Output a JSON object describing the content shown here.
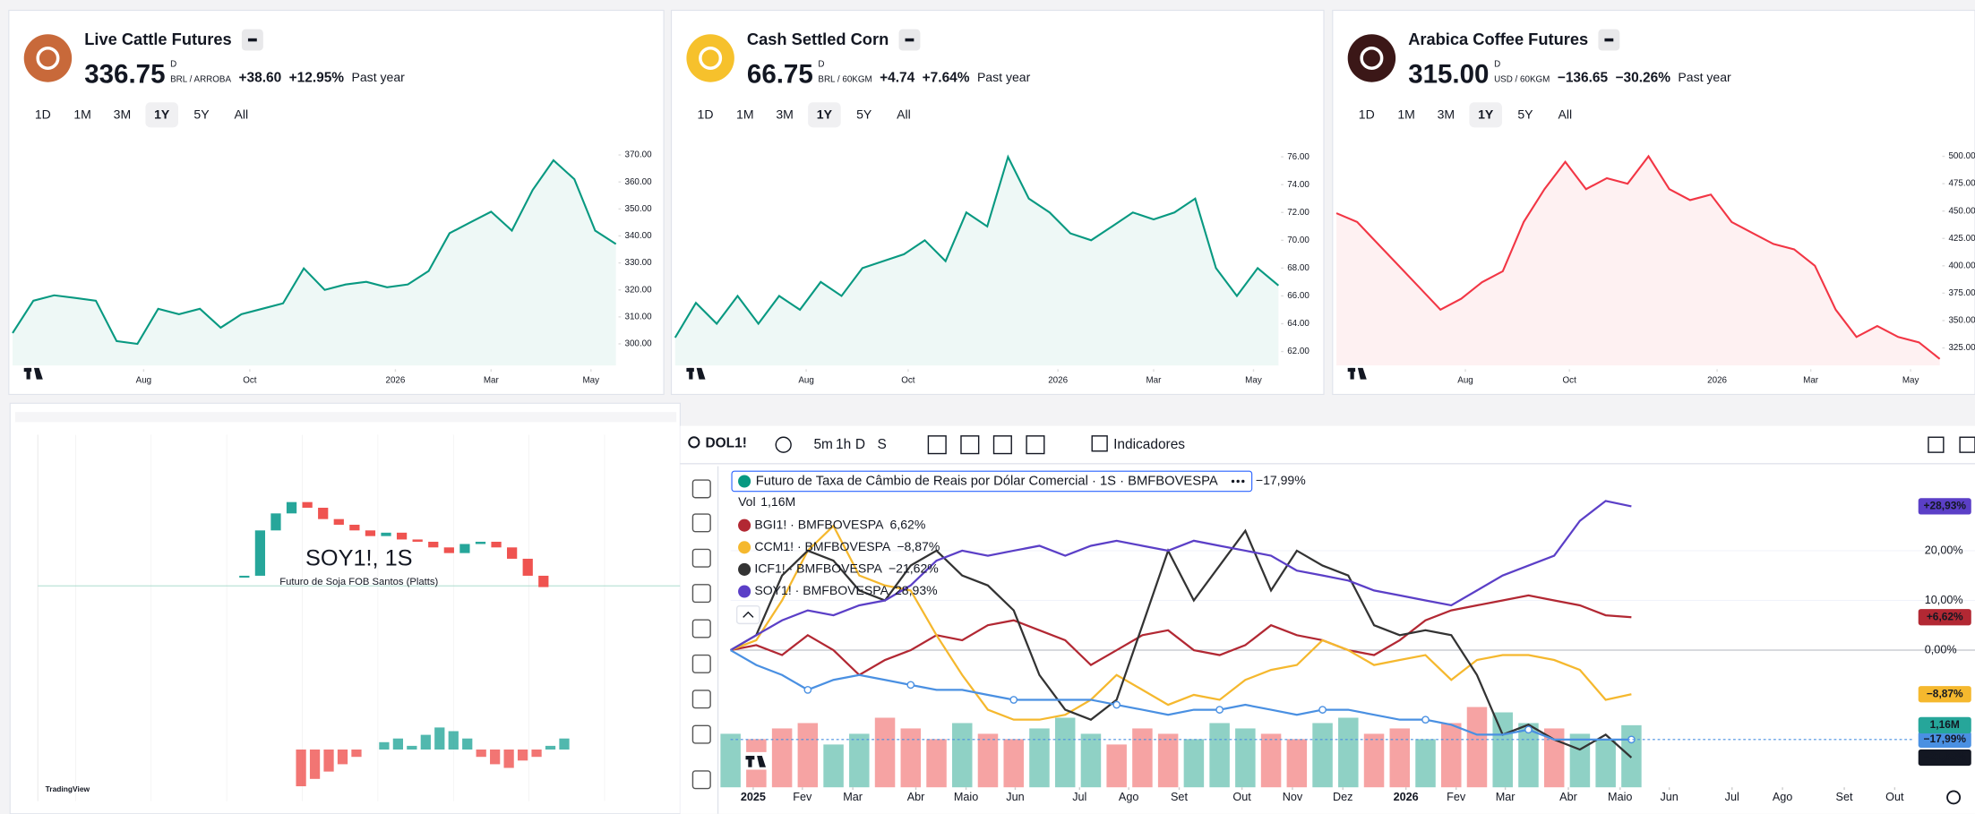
{
  "cards": [
    {
      "title": "Live Cattle Futures",
      "price": "336.75",
      "price_suffix": "D",
      "unit": "BRL / ARROBA",
      "change": "+38.60",
      "change_pct": "+12.95%",
      "period": "Past year",
      "ranges": [
        "1D",
        "1M",
        "3M",
        "1Y",
        "5Y",
        "All"
      ],
      "selected_range": 3,
      "color": "#089981",
      "icon_color": "#c8693a",
      "values": [
        304,
        316,
        318,
        317,
        316,
        301,
        300,
        313,
        311,
        313,
        306,
        311,
        313,
        315,
        328,
        320,
        322,
        323,
        321,
        322,
        327,
        341,
        345,
        349,
        342,
        357,
        368,
        361,
        342,
        337
      ],
      "ylim": [
        292,
        376
      ],
      "yticks": [
        {
          "value": 300,
          "label": "300.00"
        },
        {
          "value": 310,
          "label": "310.00"
        },
        {
          "value": 320,
          "label": "320.00"
        },
        {
          "value": 330,
          "label": "330.00"
        },
        {
          "value": 340,
          "label": "340.00"
        },
        {
          "value": 350,
          "label": "350.00"
        },
        {
          "value": 360,
          "label": "360.00"
        },
        {
          "value": 370,
          "label": "370.00"
        }
      ],
      "xticks": [
        {
          "value": 6.3,
          "label": "Aug"
        },
        {
          "value": 11.4,
          "label": "Oct"
        },
        {
          "value": 18.4,
          "label": "2026"
        },
        {
          "value": 23,
          "label": "Mar"
        },
        {
          "value": 27.8,
          "label": "May"
        }
      ]
    },
    {
      "title": "Cash Settled Corn",
      "price": "66.75",
      "price_suffix": "D",
      "unit": "BRL / 60KGM",
      "change": "+4.74",
      "change_pct": "+7.64%",
      "period": "Past year",
      "ranges": [
        "1D",
        "1M",
        "3M",
        "1Y",
        "5Y",
        "All"
      ],
      "selected_range": 3,
      "color": "#089981",
      "icon_color": "#f6c12c",
      "values": [
        63,
        65.5,
        64,
        66,
        64,
        66,
        65,
        67,
        66,
        68,
        68.5,
        69,
        70,
        68.5,
        72,
        71,
        76,
        73,
        72,
        70.5,
        70,
        71,
        72,
        71.5,
        72,
        73,
        68,
        66,
        68,
        66.75
      ],
      "ylim": [
        61,
        77.3
      ],
      "yticks": [
        {
          "value": 62,
          "label": "62.00"
        },
        {
          "value": 64,
          "label": "64.00"
        },
        {
          "value": 66,
          "label": "66.00"
        },
        {
          "value": 68,
          "label": "68.00"
        },
        {
          "value": 70,
          "label": "70.00"
        },
        {
          "value": 72,
          "label": "72.00"
        },
        {
          "value": 74,
          "label": "74.00"
        },
        {
          "value": 76,
          "label": "76.00"
        }
      ],
      "xticks": [
        {
          "value": 6.3,
          "label": "Aug"
        },
        {
          "value": 11.2,
          "label": "Oct"
        },
        {
          "value": 18.4,
          "label": "2026"
        },
        {
          "value": 23,
          "label": "Mar"
        },
        {
          "value": 27.8,
          "label": "May"
        }
      ]
    },
    {
      "title": "Arabica Coffee Futures",
      "price": "315.00",
      "price_suffix": "D",
      "unit": "USD / 60KGM",
      "change": "−136.65",
      "change_pct": "−30.26%",
      "period": "Past year",
      "ranges": [
        "1D",
        "1M",
        "3M",
        "1Y",
        "5Y",
        "All"
      ],
      "selected_range": 3,
      "color": "#f23645",
      "icon_color": "#3b1717",
      "values": [
        448,
        440,
        420,
        400,
        380,
        360,
        370,
        385,
        395,
        440,
        470,
        495,
        470,
        480,
        475,
        500,
        470,
        460,
        465,
        440,
        430,
        420,
        415,
        400,
        360,
        335,
        345,
        335,
        330,
        315
      ],
      "ylim": [
        309,
        516
      ],
      "yticks": [
        {
          "value": 325,
          "label": "325.00"
        },
        {
          "value": 350,
          "label": "350.00"
        },
        {
          "value": 375,
          "label": "375.00"
        },
        {
          "value": 400,
          "label": "400.00"
        },
        {
          "value": 425,
          "label": "425.00"
        },
        {
          "value": 450,
          "label": "450.00"
        },
        {
          "value": 475,
          "label": "475.00"
        },
        {
          "value": 500,
          "label": "500.00"
        }
      ],
      "xticks": [
        {
          "value": 6.2,
          "label": "Aug"
        },
        {
          "value": 11.2,
          "label": "Oct"
        },
        {
          "value": 18.3,
          "label": "2026"
        },
        {
          "value": 22.8,
          "label": "Mar"
        },
        {
          "value": 27.6,
          "label": "May"
        }
      ]
    }
  ],
  "mini_chart": {
    "watermark": "SOY1!, 1S",
    "subtitle": "Futuro de Soja FOB Santos (Platts)",
    "brand": "TradingView",
    "values": [
      20,
      60,
      75,
      85,
      80,
      70,
      65,
      60,
      55,
      58,
      52,
      50,
      45,
      40,
      48,
      50,
      45,
      35,
      20,
      10
    ],
    "ylim": [
      0,
      100
    ],
    "osc": [
      -10,
      -8,
      -6,
      -4,
      -2,
      0,
      2,
      3,
      1,
      4,
      6,
      5,
      3,
      -2,
      -4,
      -5,
      -3,
      -2,
      1,
      3
    ],
    "osc_lim": [
      -12,
      12
    ]
  },
  "chart_data": {
    "type": "line",
    "symbol": "DOL1!",
    "intervals": [
      "5m",
      "1h",
      "D",
      "S"
    ],
    "indicators": "Indicadores",
    "vol_label": "Vol",
    "vol_value": "1,16M",
    "series": [
      {
        "name": "BGI1! · BMFBOVESPA",
        "change": "6,62%",
        "badge": "+6,62%",
        "color": "#b22833",
        "values": [
          0,
          1,
          -1,
          3,
          0,
          -5,
          -2,
          0,
          3,
          2,
          5,
          6,
          4,
          2,
          -3,
          0,
          3,
          4,
          0,
          -1,
          1,
          5,
          3,
          2,
          0,
          -1,
          2,
          6,
          8,
          9,
          10,
          11,
          10,
          9,
          7,
          6.62
        ]
      },
      {
        "name": "CCM1! · BMFBOVESPA",
        "change": "−8,87%",
        "badge": "−8,87%",
        "color": "#f5b82e",
        "values": [
          0,
          2,
          10,
          20,
          25,
          15,
          13,
          12,
          3,
          -5,
          -12,
          -14,
          -14,
          -13,
          -10,
          -5,
          -8,
          -11,
          -9,
          -10,
          -6,
          -4,
          -3,
          2,
          0,
          -3,
          -2,
          -1,
          -6,
          -2,
          -1,
          -1,
          -2,
          -4,
          -10,
          -8.87
        ]
      },
      {
        "name": "ICF1! · BMFBOVESPA",
        "change": "−21,62%",
        "badge": "−21,62%",
        "color": "#333333",
        "values": [
          0,
          3,
          15,
          20,
          18,
          12,
          10,
          17,
          20,
          15,
          13,
          8,
          -5,
          -12,
          -14,
          -10,
          5,
          20,
          10,
          17,
          24,
          12,
          20,
          17,
          15,
          5,
          3,
          4,
          3,
          -5,
          -17,
          -15,
          -18,
          -20,
          -17,
          -21.62
        ]
      },
      {
        "name": "SOY1! · BMFBOVESPA",
        "change": "28,93%",
        "badge": "+28,93%",
        "color": "#5b3fc7",
        "values": [
          0,
          3,
          6,
          8,
          7,
          9,
          10,
          13,
          18,
          20,
          19,
          20,
          21,
          19,
          21,
          22,
          21,
          20,
          22,
          21,
          20,
          19,
          16,
          15,
          14,
          12,
          11,
          10,
          9,
          12,
          15,
          17,
          19,
          26,
          30,
          28.93
        ]
      },
      {
        "name": "Futuro de Taxa de Câmbio de Reais por Dólar Comercial · 1S · BMFBOVESPA",
        "change": "−17,99%",
        "badge": "−17,99%",
        "color": "#4a90e2",
        "values": [
          0,
          -3,
          -5,
          -8,
          -6,
          -5,
          -6,
          -7,
          -8,
          -8,
          -9,
          -10,
          -10,
          -10,
          -10,
          -11,
          -12,
          -13,
          -12,
          -12,
          -11,
          -12,
          -13,
          -12,
          -12,
          -13,
          -14,
          -14,
          -15,
          -17,
          -17,
          -16,
          -18,
          -18,
          -18,
          -17.99
        ]
      }
    ],
    "volume": [
      1.0,
      0.9,
      1.1,
      1.2,
      0.8,
      1.0,
      1.3,
      1.1,
      0.9,
      1.2,
      1.0,
      0.9,
      1.1,
      1.3,
      1.0,
      0.8,
      1.1,
      1.0,
      0.9,
      1.2,
      1.1,
      1.0,
      0.9,
      1.2,
      1.3,
      1.0,
      1.1,
      0.9,
      1.2,
      1.5,
      1.4,
      1.2,
      1.1,
      1.0,
      0.9,
      1.16
    ],
    "volume_lim": [
      0,
      6
    ],
    "xlim": [
      0,
      46
    ],
    "ylim": [
      -27.6,
      37
    ],
    "yticks": [
      {
        "value": 0,
        "label": "0,00%"
      },
      {
        "value": 10,
        "label": "10,00%"
      },
      {
        "value": 20,
        "label": "20,00%"
      }
    ],
    "xticks": [
      {
        "value": 0.88,
        "label": "2025"
      },
      {
        "value": 2.79,
        "label": "Fev"
      },
      {
        "value": 4.75,
        "label": "Mar"
      },
      {
        "value": 7.2,
        "label": "Abr"
      },
      {
        "value": 9.15,
        "label": "Maio"
      },
      {
        "value": 11.06,
        "label": "Jun"
      },
      {
        "value": 13.56,
        "label": "Jul"
      },
      {
        "value": 15.47,
        "label": "Ago"
      },
      {
        "value": 17.43,
        "label": "Set"
      },
      {
        "value": 19.87,
        "label": "Out"
      },
      {
        "value": 21.83,
        "label": "Nov"
      },
      {
        "value": 23.79,
        "label": "Dez"
      },
      {
        "value": 26.24,
        "label": "2026"
      },
      {
        "value": 28.19,
        "label": "Fev"
      },
      {
        "value": 30.1,
        "label": "Mar"
      },
      {
        "value": 32.55,
        "label": "Abr"
      },
      {
        "value": 34.56,
        "label": "Maio"
      },
      {
        "value": 36.47,
        "label": "Jun"
      },
      {
        "value": 38.91,
        "label": "Jul"
      },
      {
        "value": 40.87,
        "label": "Ago"
      },
      {
        "value": 43.27,
        "label": "Set"
      },
      {
        "value": 45.23,
        "label": "Out"
      }
    ]
  }
}
